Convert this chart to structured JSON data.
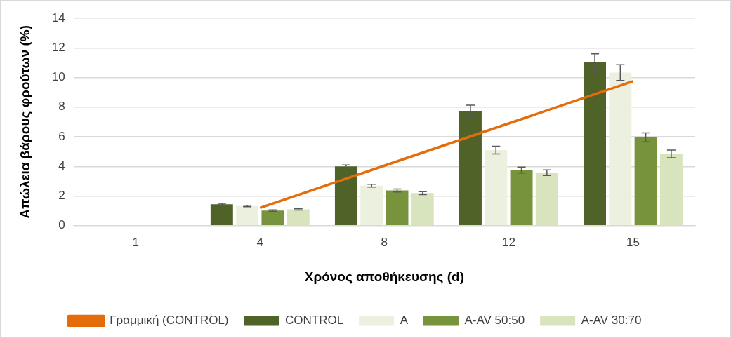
{
  "chart_data": {
    "type": "bar",
    "xlabel": "Χρόνος αποθήκευσης (d)",
    "ylabel": "Απώλεια βάρους φρούτων (%)",
    "categories": [
      "1",
      "4",
      "8",
      "12",
      "15"
    ],
    "ylim": [
      0,
      14
    ],
    "yticks": [
      0,
      2,
      4,
      6,
      8,
      10,
      12,
      14
    ],
    "grid": "y",
    "legend": "bottom",
    "series": [
      {
        "name": "CONTROL",
        "color": "#4f6228",
        "values": [
          0,
          1.45,
          4.0,
          7.74,
          11.04
        ],
        "errors": [
          null,
          0.05,
          0.1,
          0.39,
          0.56
        ]
      },
      {
        "name": "A",
        "color": "#ebf1de",
        "values": [
          0,
          1.33,
          2.7,
          5.1,
          10.33
        ],
        "errors": [
          null,
          0.05,
          0.1,
          0.26,
          0.53
        ]
      },
      {
        "name": "A-AV 50:50",
        "color": "#77933c",
        "values": [
          0,
          1.02,
          2.38,
          3.75,
          5.96
        ],
        "errors": [
          null,
          0.05,
          0.1,
          0.2,
          0.3
        ]
      },
      {
        "name": "A-AV 30:70",
        "color": "#d7e4bd",
        "values": [
          0,
          1.1,
          2.2,
          3.58,
          4.84
        ],
        "errors": [
          null,
          0.05,
          0.1,
          0.19,
          0.26
        ]
      },
      {
        "name": "Γραμμική (CONTROL)",
        "type": "line",
        "color": "#e46c0a",
        "values": [
          null,
          1.2,
          4.05,
          6.9,
          9.75
        ]
      }
    ]
  }
}
